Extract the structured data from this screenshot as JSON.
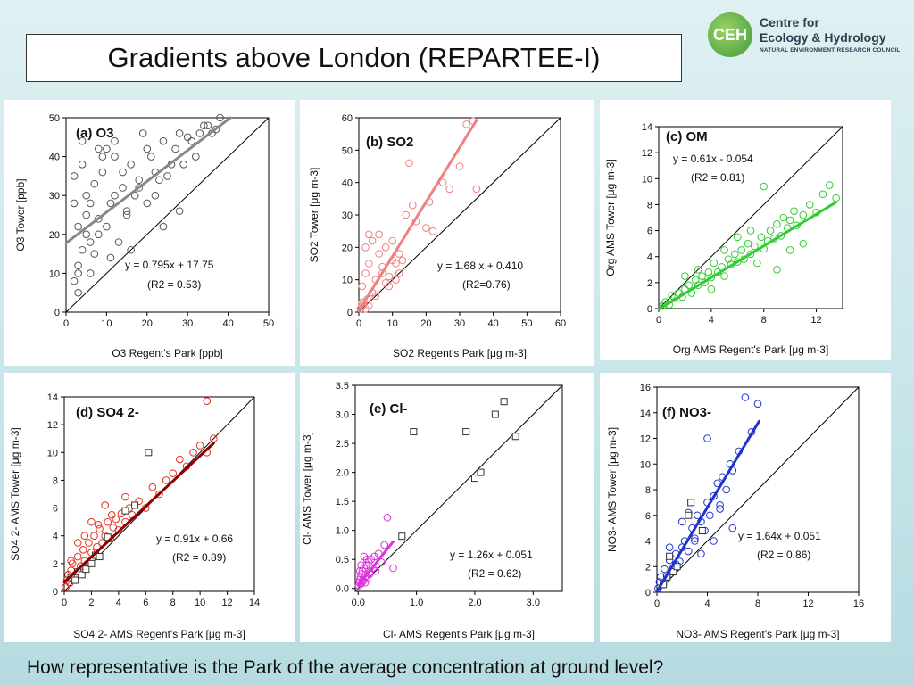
{
  "header": {
    "title": "Gradients above London (REPARTEE-I)"
  },
  "logo": {
    "mark": "CEH",
    "line1": "Centre for",
    "line2": "Ecology & Hydrology",
    "line3": "NATURAL ENVIRONMENT RESEARCH COUNCIL"
  },
  "caption": "How representative is the Park of the average concentration at ground level?",
  "colors": {
    "o3": "#555555",
    "so2": "#f08080",
    "om": "#33cc33",
    "so4": "#e03020",
    "cl": "#dd33dd",
    "no3": "#2233cc",
    "bg": "#c9e6ea"
  },
  "chart_data": [
    {
      "id": "a",
      "type": "scatter",
      "title": "(a) O3",
      "xlabel": "O3 Regent's Park [ppb]",
      "ylabel": "O3 Tower [ppb]",
      "xlim": [
        0,
        50
      ],
      "ylim": [
        0,
        50
      ],
      "xticks": [
        0,
        10,
        20,
        30,
        40,
        50
      ],
      "yticks": [
        0,
        10,
        20,
        30,
        40,
        50
      ],
      "fit": {
        "slope": 0.795,
        "intercept": 17.75,
        "x_range": [
          0,
          50
        ]
      },
      "equation": "y = 0.795x + 17.75",
      "r2": "(R2 = 0.53)",
      "series": [
        {
          "marker": "circle",
          "color": "#555555",
          "x": [
            2,
            3,
            4,
            3,
            5,
            6,
            2,
            4,
            7,
            8,
            5,
            9,
            10,
            6,
            11,
            12,
            3,
            14,
            15,
            8,
            16,
            18,
            10,
            20,
            12,
            22,
            24,
            15,
            26,
            28,
            18,
            30,
            20,
            32,
            34,
            25,
            36,
            22,
            38,
            2,
            3,
            5,
            7,
            9,
            12,
            14,
            17,
            19,
            21,
            23,
            27,
            29,
            31,
            33,
            35,
            37,
            6,
            11,
            13,
            16,
            24,
            28,
            4,
            8
          ],
          "y": [
            8,
            12,
            16,
            22,
            25,
            28,
            35,
            38,
            15,
            24,
            30,
            36,
            42,
            18,
            28,
            40,
            10,
            32,
            26,
            20,
            38,
            34,
            22,
            42,
            30,
            36,
            44,
            25,
            38,
            46,
            32,
            45,
            28,
            40,
            48,
            35,
            46,
            30,
            50,
            28,
            5,
            20,
            33,
            40,
            44,
            36,
            30,
            46,
            40,
            34,
            42,
            38,
            44,
            46,
            48,
            47,
            10,
            14,
            18,
            16,
            22,
            26,
            44,
            42
          ]
        }
      ]
    },
    {
      "id": "b",
      "type": "scatter",
      "title": "(b) SO2",
      "xlabel": "SO2 Regent's Park [μg m-3]",
      "ylabel": "SO2 Tower [μg m-3]",
      "xlim": [
        0,
        60
      ],
      "ylim": [
        0,
        60
      ],
      "xticks": [
        0,
        10,
        20,
        30,
        40,
        50,
        60
      ],
      "yticks": [
        0,
        10,
        20,
        30,
        40,
        50,
        60
      ],
      "fit": {
        "slope": 1.68,
        "intercept": 0.41,
        "x_range": [
          0,
          35
        ]
      },
      "equation": "y = 1.68 x + 0.410",
      "r2": "(R2=0.76)",
      "series": [
        {
          "marker": "circle",
          "color": "#f08080",
          "x": [
            0.5,
            1,
            1.5,
            2,
            2.5,
            3,
            1,
            2,
            3,
            4,
            5,
            6,
            4,
            5,
            7,
            8,
            9,
            10,
            6,
            7,
            8,
            9,
            11,
            12,
            2,
            3,
            4,
            1,
            0.5,
            14,
            15,
            16,
            17,
            20,
            21,
            22,
            25,
            27,
            30,
            32,
            34,
            35,
            12,
            13,
            10,
            11
          ],
          "y": [
            1,
            2,
            3,
            1,
            4,
            2,
            8,
            12,
            15,
            6,
            10,
            18,
            22,
            5,
            14,
            20,
            8,
            16,
            24,
            12,
            9,
            11,
            15,
            18,
            20,
            24,
            6,
            3,
            1,
            30,
            46,
            33,
            28,
            26,
            34,
            25,
            40,
            38,
            45,
            58,
            59,
            38,
            12,
            16,
            22,
            10
          ]
        }
      ]
    },
    {
      "id": "c",
      "type": "scatter",
      "title": "(c) OM",
      "xlabel": "Org AMS Regent's Park [μg m-3]",
      "ylabel": "Org AMS Tower [μg m-3]",
      "xlim": [
        0,
        14
      ],
      "ylim": [
        0,
        14
      ],
      "xticks": [
        0,
        4,
        8,
        12
      ],
      "yticks": [
        0,
        2,
        4,
        6,
        8,
        10,
        12,
        14
      ],
      "fit": {
        "slope": 0.61,
        "intercept": -0.054,
        "x_range": [
          0,
          13.5
        ]
      },
      "equation": "y = 0.61x - 0.054",
      "r2": "(R2 = 0.81)",
      "series": [
        {
          "marker": "circle",
          "color": "#33cc33",
          "x": [
            0.3,
            0.5,
            0.8,
            1,
            1.2,
            1.5,
            1.8,
            2,
            2.3,
            2.5,
            2.8,
            3,
            3.3,
            3.5,
            3.8,
            4,
            4.2,
            4.5,
            4.8,
            5,
            5.3,
            5.5,
            5.8,
            6,
            6.3,
            6.5,
            6.8,
            7,
            7.3,
            7.5,
            7.8,
            8,
            8.3,
            8.5,
            8.8,
            9,
            9.3,
            9.5,
            9.8,
            10,
            10.3,
            10.5,
            11,
            11.5,
            12,
            12.5,
            13,
            13.5,
            8,
            9,
            4,
            5,
            6,
            3,
            2,
            7,
            10,
            11
          ],
          "y": [
            0.2,
            0.5,
            0.3,
            1,
            0.8,
            1.2,
            0.9,
            1.5,
            1.8,
            1.2,
            2.2,
            1.8,
            2.5,
            2,
            2.8,
            2.4,
            3.5,
            2.8,
            3.2,
            2.5,
            3.8,
            3.4,
            4.2,
            3.6,
            4.5,
            3.8,
            5,
            4.2,
            4.8,
            3.5,
            5.5,
            4.6,
            5.2,
            6,
            5.4,
            6.5,
            5.6,
            7,
            6.2,
            6.8,
            7.5,
            6.4,
            7.2,
            8,
            7.4,
            8.8,
            9.5,
            8.5,
            9.4,
            3,
            1.5,
            4.5,
            5.5,
            3,
            2.5,
            6,
            4.5,
            5
          ]
        }
      ]
    },
    {
      "id": "d",
      "type": "scatter",
      "title": "(d) SO4 2-",
      "xlabel": "SO4 2- AMS Regent's Park [μg m-3]",
      "ylabel": "SO4 2- AMS Tower [μg m-3]",
      "xlim": [
        0,
        14
      ],
      "ylim": [
        0,
        14
      ],
      "xticks": [
        0,
        2,
        4,
        6,
        8,
        10,
        12,
        14
      ],
      "yticks": [
        0,
        2,
        4,
        6,
        8,
        10,
        12,
        14
      ],
      "fit": {
        "slope": 0.91,
        "intercept": 0.66,
        "x_range": [
          0,
          11
        ]
      },
      "equation": "y = 0.91x + 0.66",
      "r2": "(R2 = 0.89)",
      "series": [
        {
          "marker": "circle",
          "color": "#e03020",
          "x": [
            0.1,
            0.2,
            0.3,
            0.4,
            0.5,
            0.6,
            0.8,
            1,
            1.2,
            1.4,
            1.5,
            1.8,
            2,
            2.2,
            2.4,
            2.6,
            2.8,
            3,
            3.2,
            3.4,
            3.6,
            3.8,
            4,
            4.2,
            4.5,
            4.8,
            5,
            5.5,
            6,
            6.5,
            7,
            7.5,
            8,
            8.5,
            9,
            9.5,
            10,
            10.5,
            11,
            10.5,
            1,
            2,
            3,
            0.5,
            1.5,
            2.5,
            3.5,
            4.5
          ],
          "y": [
            0.3,
            0.8,
            1.2,
            0.6,
            1.5,
            2,
            1.2,
            2.5,
            1.8,
            3,
            2.2,
            3.5,
            2.8,
            4,
            3.2,
            4.5,
            3.5,
            4,
            5,
            3.8,
            4.6,
            5.2,
            4.4,
            5.6,
            5,
            6,
            5.5,
            6.5,
            6,
            7.5,
            7,
            8,
            8.5,
            9.5,
            9,
            10,
            10.5,
            10,
            11,
            13.7,
            3.5,
            5,
            6.2,
            2.2,
            4,
            4.8,
            5.5,
            6.8
          ]
        },
        {
          "marker": "square",
          "color": "#333333",
          "x": [
            0.5,
            0.8,
            1,
            1.3,
            1.6,
            2,
            2.3,
            2.6,
            3.2,
            4.5,
            5.2,
            6.2
          ],
          "y": [
            1,
            0.8,
            1.4,
            1.2,
            1.6,
            2,
            2.6,
            2.5,
            3.9,
            5.8,
            6.2,
            10
          ]
        }
      ]
    },
    {
      "id": "e",
      "type": "scatter",
      "title": "(e) Cl-",
      "xlabel": "Cl- AMS Regent's Park [μg m-3]",
      "ylabel": "Cl- AMS Tower [μg m-3]",
      "xlim": [
        -0.05,
        3.5
      ],
      "ylim": [
        -0.05,
        3.5
      ],
      "xticks": [
        0.0,
        1.0,
        2.0,
        3.0
      ],
      "xtick_labels": [
        "0.0",
        "1.0",
        "2.0",
        "3.0"
      ],
      "yticks": [
        0.0,
        0.5,
        1.0,
        1.5,
        2.0,
        2.5,
        3.0,
        3.5
      ],
      "ytick_labels": [
        "0.0",
        "0.5",
        "1.0",
        "1.5",
        "2.0",
        "2.5",
        "3.0",
        "3.5"
      ],
      "fit": {
        "slope": 1.26,
        "intercept": 0.051,
        "x_range": [
          0,
          0.6
        ]
      },
      "equation": "y = 1.26x + 0.051",
      "r2": "(R2 = 0.62)",
      "series": [
        {
          "marker": "circle",
          "color": "#dd33dd",
          "x": [
            0.01,
            0.02,
            0.03,
            0.04,
            0.05,
            0.06,
            0.07,
            0.08,
            0.1,
            0.12,
            0.14,
            0.15,
            0.18,
            0.2,
            0.22,
            0.25,
            0.28,
            0.3,
            0.35,
            0.4,
            0.45,
            0.5,
            0.6,
            0.05,
            0.1,
            0.15,
            0.2,
            0.08,
            0.12,
            0.03
          ],
          "y": [
            0.05,
            0.1,
            0.15,
            0.2,
            0.08,
            0.25,
            0.3,
            0.12,
            0.35,
            0.2,
            0.4,
            0.18,
            0.45,
            0.28,
            0.5,
            0.35,
            0.55,
            0.3,
            0.6,
            0.45,
            0.75,
            1.22,
            0.35,
            0.4,
            0.55,
            0.5,
            0.25,
            0.15,
            0.1,
            0.3
          ]
        },
        {
          "marker": "square",
          "color": "#333333",
          "x": [
            0.75,
            0.95,
            1.85,
            2.0,
            2.1,
            2.35,
            2.5,
            2.7
          ],
          "y": [
            0.9,
            2.7,
            2.7,
            1.9,
            2.0,
            3.0,
            3.22,
            2.62
          ]
        }
      ]
    },
    {
      "id": "f",
      "type": "scatter",
      "title": "(f) NO3-",
      "xlabel": "NO3- AMS Regent's Park [μg m-3]",
      "ylabel": "NO3- AMS Tower [μg m-3]",
      "xlim": [
        0,
        16
      ],
      "ylim": [
        0,
        16
      ],
      "xticks": [
        0,
        4,
        8,
        12,
        16
      ],
      "yticks": [
        0,
        2,
        4,
        6,
        8,
        10,
        12,
        14,
        16
      ],
      "fit": {
        "slope": 1.64,
        "intercept": 0.051,
        "x_range": [
          0,
          8.1
        ]
      },
      "equation": "y = 1.64x + 0.051",
      "r2": "(R2 = 0.86)",
      "series": [
        {
          "marker": "circle",
          "color": "#2233cc",
          "x": [
            0.1,
            0.2,
            0.3,
            0.5,
            0.6,
            0.8,
            1,
            1.2,
            1.5,
            1.8,
            2,
            2.2,
            2.5,
            2.8,
            3,
            3.2,
            3.5,
            3.8,
            4,
            4.2,
            4.5,
            4.8,
            5,
            5.2,
            5.5,
            5.8,
            6,
            6.5,
            7,
            7.5,
            8,
            4,
            3,
            2,
            5,
            6,
            1,
            1.5,
            2.5,
            3.5,
            4.5
          ],
          "y": [
            0.3,
            0.8,
            1.2,
            0.6,
            1.8,
            1.2,
            2.5,
            1.8,
            3,
            2.4,
            3.5,
            4,
            3.2,
            5,
            4.2,
            6,
            5.5,
            4.8,
            7,
            6,
            7.5,
            8.5,
            6.5,
            9,
            8,
            10,
            9.5,
            11,
            15.2,
            12.5,
            14.7,
            12,
            4,
            5.5,
            6.8,
            5,
            3.5,
            2.2,
            6.2,
            3,
            4
          ]
        },
        {
          "marker": "square",
          "color": "#333333",
          "x": [
            0.5,
            0.8,
            1,
            1.3,
            1.6,
            2.5,
            2.7,
            3.6
          ],
          "y": [
            0.6,
            1.2,
            2.8,
            1.6,
            2,
            6,
            7,
            4.8
          ]
        }
      ]
    }
  ]
}
